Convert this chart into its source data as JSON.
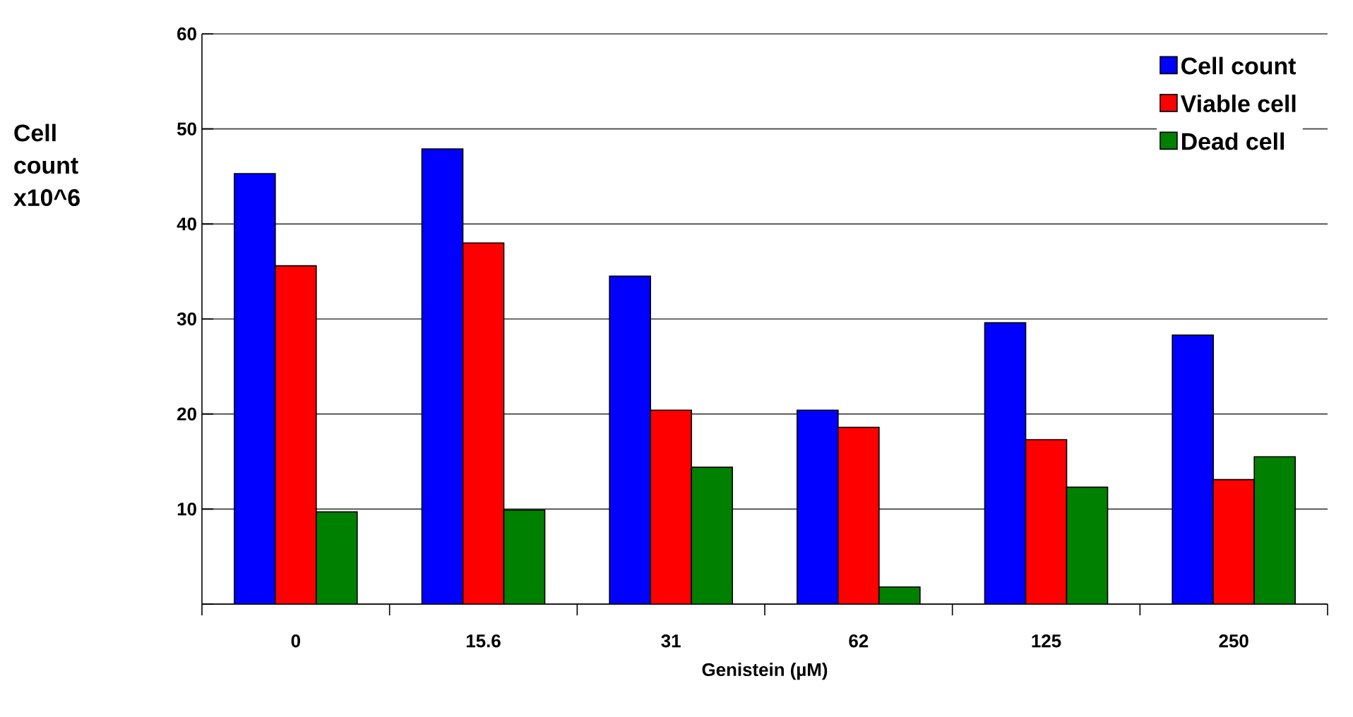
{
  "chart_data": {
    "type": "bar",
    "xlabel": "Genistein (µM)",
    "ylabel": "Cell count x10^6",
    "categories": [
      "0",
      "15.6",
      "31",
      "62",
      "125",
      "250"
    ],
    "series": [
      {
        "name": "Cell count",
        "color": "#0000ff",
        "values": [
          45.3,
          47.9,
          34.5,
          20.4,
          29.6,
          28.3
        ]
      },
      {
        "name": "Viable cell",
        "color": "#ff0000",
        "values": [
          35.6,
          38.0,
          20.4,
          18.6,
          17.3,
          13.1
        ]
      },
      {
        "name": "Dead cell",
        "color": "#008000",
        "values": [
          9.7,
          9.9,
          14.4,
          1.8,
          12.3,
          15.5
        ]
      }
    ],
    "ylim": [
      0,
      60
    ],
    "yticks": [
      {
        "value": 0,
        "label": null
      },
      10,
      20,
      30,
      40,
      50,
      60
    ],
    "grid": "y",
    "legend": "top right"
  }
}
